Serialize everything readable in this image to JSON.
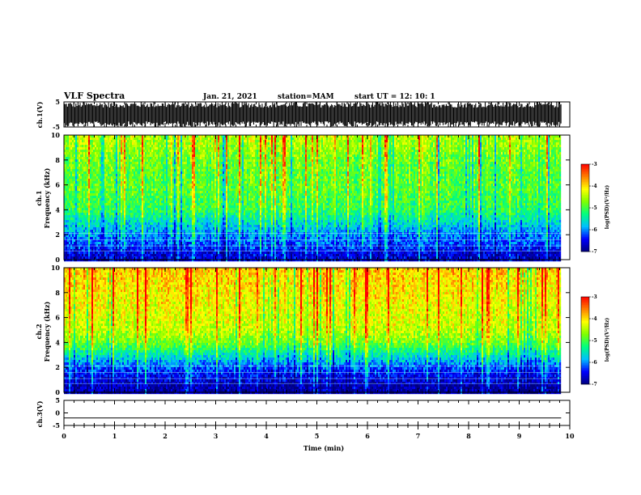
{
  "header": {
    "title": "VLF Spectra",
    "date": "Jan. 21, 2021",
    "station": "station=MAM",
    "start": "start UT =  12: 10: 1"
  },
  "colorbar_label": "log(PSD)(V²/Hz)",
  "colormap": [
    "#00007f",
    "#0000ff",
    "#00bfff",
    "#00ff7f",
    "#7fff00",
    "#ffff00",
    "#ff7f00",
    "#ff0000",
    "#ffffff"
  ],
  "chart_data": [
    {
      "type": "line",
      "name": "ch.1 waveform",
      "ylabel": "ch.1(V)",
      "ylim": [
        -5,
        5
      ],
      "yticks": [
        "5",
        "-5"
      ],
      "x": [
        0,
        9.83
      ],
      "y": [
        0,
        0
      ],
      "note_style": "dense saturated black signal filling the panel"
    },
    {
      "type": "heatmap",
      "name": "ch.1 spectrogram",
      "ylabel": "ch.1",
      "ylabel2": "Frequency (kHz)",
      "ylim": [
        0,
        10
      ],
      "yticks": [
        "0",
        "2",
        "4",
        "6",
        "8",
        "10"
      ],
      "colorbar_range": [
        -7,
        -3
      ],
      "colorbar_ticks": [
        "-3",
        "-4",
        "-5",
        "-6",
        "-7"
      ],
      "frequency_kHz": [
        0.5,
        1,
        2,
        3,
        4,
        5,
        6,
        7,
        8,
        9,
        10
      ],
      "mean_log_psd": [
        -6.6,
        -6.3,
        -6.0,
        -5.6,
        -5.1,
        -5.0,
        -4.9,
        -4.9,
        -4.8,
        -4.6,
        -4.5
      ]
    },
    {
      "type": "heatmap",
      "name": "ch.2 spectrogram",
      "ylabel": "ch.2",
      "ylabel2": "Frequency (kHz)",
      "ylim": [
        0,
        10
      ],
      "yticks": [
        "0",
        "2",
        "4",
        "6",
        "8",
        "10"
      ],
      "colorbar_range": [
        -7,
        -3
      ],
      "colorbar_ticks": [
        "-3",
        "-4",
        "-5",
        "-6",
        "-7"
      ],
      "frequency_kHz": [
        0.5,
        1,
        2,
        3,
        4,
        5,
        6,
        7,
        8,
        9,
        10
      ],
      "mean_log_psd": [
        -6.8,
        -6.6,
        -6.2,
        -5.5,
        -4.8,
        -4.4,
        -4.3,
        -4.2,
        -4.1,
        -4.0,
        -3.9
      ]
    },
    {
      "type": "line",
      "name": "ch.3 waveform",
      "ylabel": "ch.3(V)",
      "ylim": [
        -5,
        5
      ],
      "yticks": [
        "5",
        "0",
        "-5"
      ],
      "x": [
        0,
        9.83
      ],
      "y": [
        -2,
        -2
      ]
    }
  ],
  "x_axis": {
    "label": "Time (min)",
    "xlim": [
      0,
      10
    ],
    "ticks": [
      "0",
      "1",
      "2",
      "3",
      "4",
      "5",
      "6",
      "7",
      "8",
      "9",
      "10"
    ]
  }
}
